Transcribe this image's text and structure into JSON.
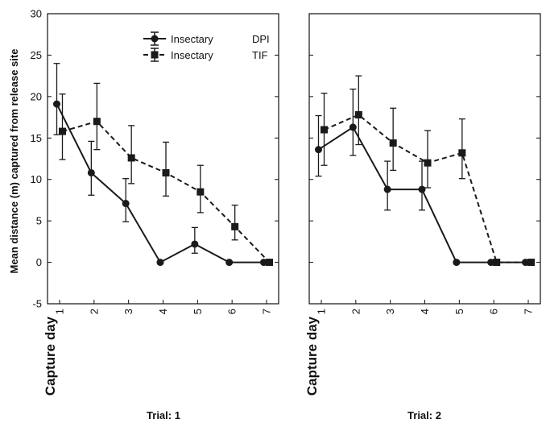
{
  "chart_data": [
    {
      "type": "line",
      "panel_label": "Trial: 1",
      "xlabel": "Capture day",
      "ylabel": "Mean distance (m) captured from release site",
      "x": [
        1,
        2,
        3,
        4,
        5,
        6,
        7
      ],
      "x_tick_labels": [
        "1",
        "2",
        "3",
        "4",
        "5",
        "6",
        "7"
      ],
      "ylim": [
        -5,
        30
      ],
      "y_ticks": [
        -5,
        0,
        5,
        10,
        15,
        20,
        25,
        30
      ],
      "grid": false,
      "legend_position": "top-right",
      "series": [
        {
          "name": "Insectary DPI",
          "legend_label": "Insectary",
          "legend_code": "DPI",
          "marker": "circle",
          "line_style": "solid",
          "color": "#1a1a1a",
          "values": [
            19.1,
            10.8,
            7.1,
            0,
            2.2,
            0,
            0
          ],
          "error_low": [
            15.4,
            8.1,
            4.9,
            0,
            1.1,
            0,
            0
          ],
          "error_high": [
            24.0,
            14.6,
            10.1,
            0,
            4.2,
            0,
            0
          ]
        },
        {
          "name": "Insectary TIF",
          "legend_label": "Insectary",
          "legend_code": "TIF",
          "marker": "square",
          "line_style": "dashed",
          "color": "#1a1a1a",
          "values": [
            15.8,
            17.0,
            12.6,
            10.8,
            8.5,
            4.3,
            0
          ],
          "error_low": [
            12.4,
            13.6,
            9.5,
            8.0,
            6.0,
            2.7,
            0
          ],
          "error_high": [
            20.3,
            21.6,
            16.5,
            14.5,
            11.7,
            6.9,
            0
          ]
        }
      ]
    },
    {
      "type": "line",
      "panel_label": "Trial: 2",
      "xlabel": "Capture day",
      "x": [
        1,
        2,
        3,
        4,
        5,
        6,
        7
      ],
      "x_tick_labels": [
        "1",
        "2",
        "3",
        "4",
        "5",
        "6",
        "7"
      ],
      "ylim": [
        -5,
        30
      ],
      "grid": false,
      "series": [
        {
          "name": "Insectary DPI",
          "marker": "circle",
          "line_style": "solid",
          "color": "#1a1a1a",
          "values": [
            13.6,
            16.3,
            8.8,
            8.8,
            0,
            0,
            0
          ],
          "error_low": [
            10.4,
            12.9,
            6.3,
            6.3,
            0,
            0,
            0
          ],
          "error_high": [
            17.7,
            20.9,
            12.2,
            12.2,
            0,
            0,
            0
          ]
        },
        {
          "name": "Insectary TIF",
          "marker": "square",
          "line_style": "dashed",
          "color": "#1a1a1a",
          "values": [
            16.0,
            17.8,
            14.4,
            12.0,
            13.2,
            0,
            0
          ],
          "error_low": [
            11.7,
            14.2,
            11.1,
            9.0,
            10.1,
            0,
            0
          ],
          "error_high": [
            20.4,
            22.5,
            18.6,
            15.9,
            17.3,
            0,
            0
          ]
        }
      ]
    }
  ]
}
